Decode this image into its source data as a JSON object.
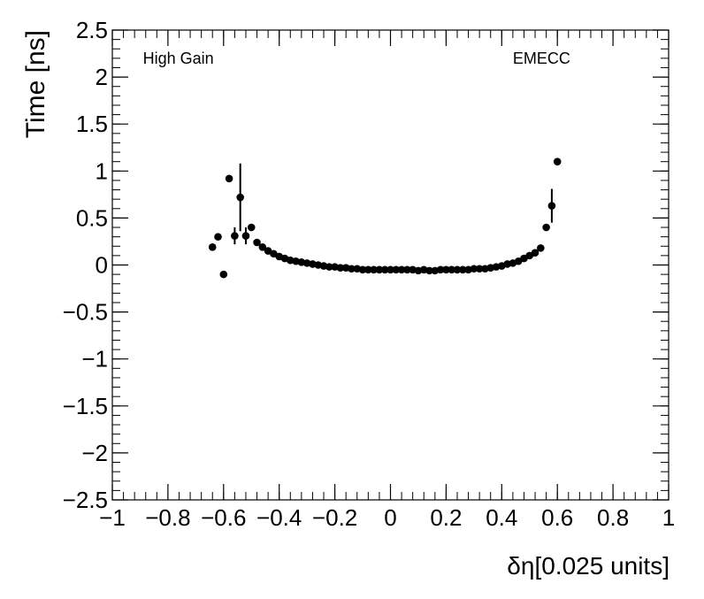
{
  "chart_data": {
    "type": "scatter",
    "title": "",
    "xlabel": "δη[0.025 units]",
    "ylabel": "Time [ns]",
    "xlim": [
      -1,
      1
    ],
    "ylim": [
      -2.5,
      2.5
    ],
    "x_ticks": [
      -1,
      -0.8,
      -0.6,
      -0.4,
      -0.2,
      0,
      0.2,
      0.4,
      0.6,
      0.8,
      1
    ],
    "x_tick_labels": [
      "−1",
      "−0.8",
      "−0.6",
      "−0.4",
      "−0.2",
      "0",
      "0.2",
      "0.4",
      "0.6",
      "0.8",
      "1"
    ],
    "y_ticks": [
      -2.5,
      -2,
      -1.5,
      -1,
      -0.5,
      0,
      0.5,
      1,
      1.5,
      2,
      2.5
    ],
    "y_tick_labels": [
      "−2.5",
      "−2",
      "−1.5",
      "−1",
      "−0.5",
      "0",
      "0.5",
      "1",
      "1.5",
      "2",
      "2.5"
    ],
    "grid": false,
    "annotations": [
      {
        "text": "High Gain",
        "x": -0.89,
        "y": 2.2
      },
      {
        "text": "EMECC",
        "x": 0.44,
        "y": 2.2
      }
    ],
    "series": [
      {
        "marker": "circle",
        "color": "#000000",
        "points": [
          {
            "x": -0.64,
            "y": 0.19
          },
          {
            "x": -0.62,
            "y": 0.3
          },
          {
            "x": -0.6,
            "y": -0.1
          },
          {
            "x": -0.58,
            "y": 0.92
          },
          {
            "x": -0.56,
            "y": 0.31,
            "err": 0.09
          },
          {
            "x": -0.54,
            "y": 0.72,
            "err": 0.36
          },
          {
            "x": -0.52,
            "y": 0.31,
            "err": 0.09
          },
          {
            "x": -0.5,
            "y": 0.4
          },
          {
            "x": -0.48,
            "y": 0.24
          },
          {
            "x": -0.46,
            "y": 0.19
          },
          {
            "x": -0.44,
            "y": 0.15
          },
          {
            "x": -0.42,
            "y": 0.12
          },
          {
            "x": -0.4,
            "y": 0.09
          },
          {
            "x": -0.38,
            "y": 0.07
          },
          {
            "x": -0.36,
            "y": 0.05
          },
          {
            "x": -0.34,
            "y": 0.04
          },
          {
            "x": -0.32,
            "y": 0.03
          },
          {
            "x": -0.3,
            "y": 0.02
          },
          {
            "x": -0.28,
            "y": 0.01
          },
          {
            "x": -0.26,
            "y": 0.0
          },
          {
            "x": -0.24,
            "y": -0.01
          },
          {
            "x": -0.22,
            "y": -0.02
          },
          {
            "x": -0.2,
            "y": -0.02
          },
          {
            "x": -0.18,
            "y": -0.03
          },
          {
            "x": -0.16,
            "y": -0.03
          },
          {
            "x": -0.14,
            "y": -0.04
          },
          {
            "x": -0.12,
            "y": -0.04
          },
          {
            "x": -0.1,
            "y": -0.05
          },
          {
            "x": -0.08,
            "y": -0.05
          },
          {
            "x": -0.06,
            "y": -0.05
          },
          {
            "x": -0.04,
            "y": -0.05
          },
          {
            "x": -0.02,
            "y": -0.05
          },
          {
            "x": 0.0,
            "y": -0.05
          },
          {
            "x": 0.02,
            "y": -0.05
          },
          {
            "x": 0.04,
            "y": -0.05
          },
          {
            "x": 0.06,
            "y": -0.05
          },
          {
            "x": 0.08,
            "y": -0.05
          },
          {
            "x": 0.1,
            "y": -0.06
          },
          {
            "x": 0.12,
            "y": -0.05
          },
          {
            "x": 0.14,
            "y": -0.06
          },
          {
            "x": 0.16,
            "y": -0.06
          },
          {
            "x": 0.18,
            "y": -0.05
          },
          {
            "x": 0.2,
            "y": -0.05
          },
          {
            "x": 0.22,
            "y": -0.05
          },
          {
            "x": 0.24,
            "y": -0.05
          },
          {
            "x": 0.26,
            "y": -0.05
          },
          {
            "x": 0.28,
            "y": -0.05
          },
          {
            "x": 0.3,
            "y": -0.04
          },
          {
            "x": 0.32,
            "y": -0.04
          },
          {
            "x": 0.34,
            "y": -0.04
          },
          {
            "x": 0.36,
            "y": -0.03
          },
          {
            "x": 0.38,
            "y": -0.02
          },
          {
            "x": 0.4,
            "y": -0.01
          },
          {
            "x": 0.42,
            "y": 0.01
          },
          {
            "x": 0.44,
            "y": 0.02
          },
          {
            "x": 0.46,
            "y": 0.04
          },
          {
            "x": 0.48,
            "y": 0.07
          },
          {
            "x": 0.5,
            "y": 0.1
          },
          {
            "x": 0.52,
            "y": 0.13
          },
          {
            "x": 0.54,
            "y": 0.18
          },
          {
            "x": 0.56,
            "y": 0.4
          },
          {
            "x": 0.58,
            "y": 0.63,
            "err": 0.18
          },
          {
            "x": 0.6,
            "y": 1.1
          }
        ]
      }
    ]
  }
}
